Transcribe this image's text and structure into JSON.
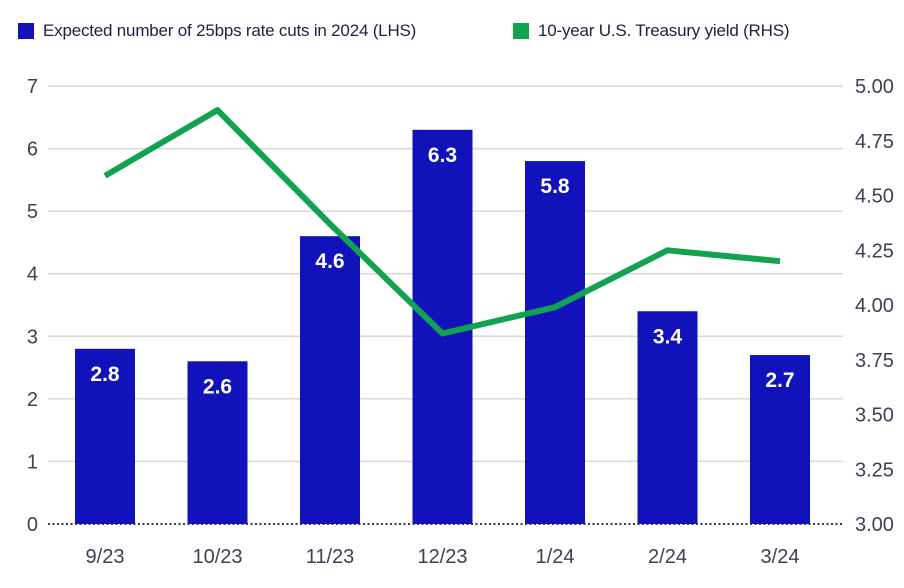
{
  "legend": {
    "bar_label": "Expected number of 25bps rate cuts in 2024 (LHS)",
    "line_label": "10-year U.S. Treasury yield (RHS)"
  },
  "colors": {
    "bar": "#1212ba",
    "line": "#12a350",
    "grid": "#d9d9d9",
    "baseline": "#3a3a55",
    "axis_text": "#3f3f55",
    "bar_value_text": "#ffffff"
  },
  "chart_data": {
    "type": "combo",
    "categories": [
      "9/23",
      "10/23",
      "11/23",
      "12/23",
      "1/24",
      "2/24",
      "3/24"
    ],
    "series": [
      {
        "name": "Expected number of 25bps rate cuts in 2024 (LHS)",
        "type": "bar",
        "axis": "left",
        "values": [
          2.8,
          2.6,
          4.6,
          6.3,
          5.8,
          3.4,
          2.7
        ],
        "labels": [
          "2.8",
          "2.6",
          "4.6",
          "6.3",
          "5.8",
          "3.4",
          "2.7"
        ],
        "color": "#1212ba"
      },
      {
        "name": "10-year U.S. Treasury yield (RHS)",
        "type": "line",
        "axis": "right",
        "values": [
          4.59,
          4.89,
          4.37,
          3.87,
          3.99,
          4.25,
          4.2
        ],
        "color": "#12a350"
      }
    ],
    "left_axis": {
      "min": 0,
      "max": 7,
      "ticks": [
        "0",
        "1",
        "2",
        "3",
        "4",
        "5",
        "6",
        "7"
      ]
    },
    "right_axis": {
      "min": 3.0,
      "max": 5.0,
      "ticks": [
        "3.00",
        "3.25",
        "3.50",
        "3.75",
        "4.00",
        "4.25",
        "4.50",
        "4.75",
        "5.00"
      ]
    },
    "grid": true,
    "legend_position": "top"
  }
}
